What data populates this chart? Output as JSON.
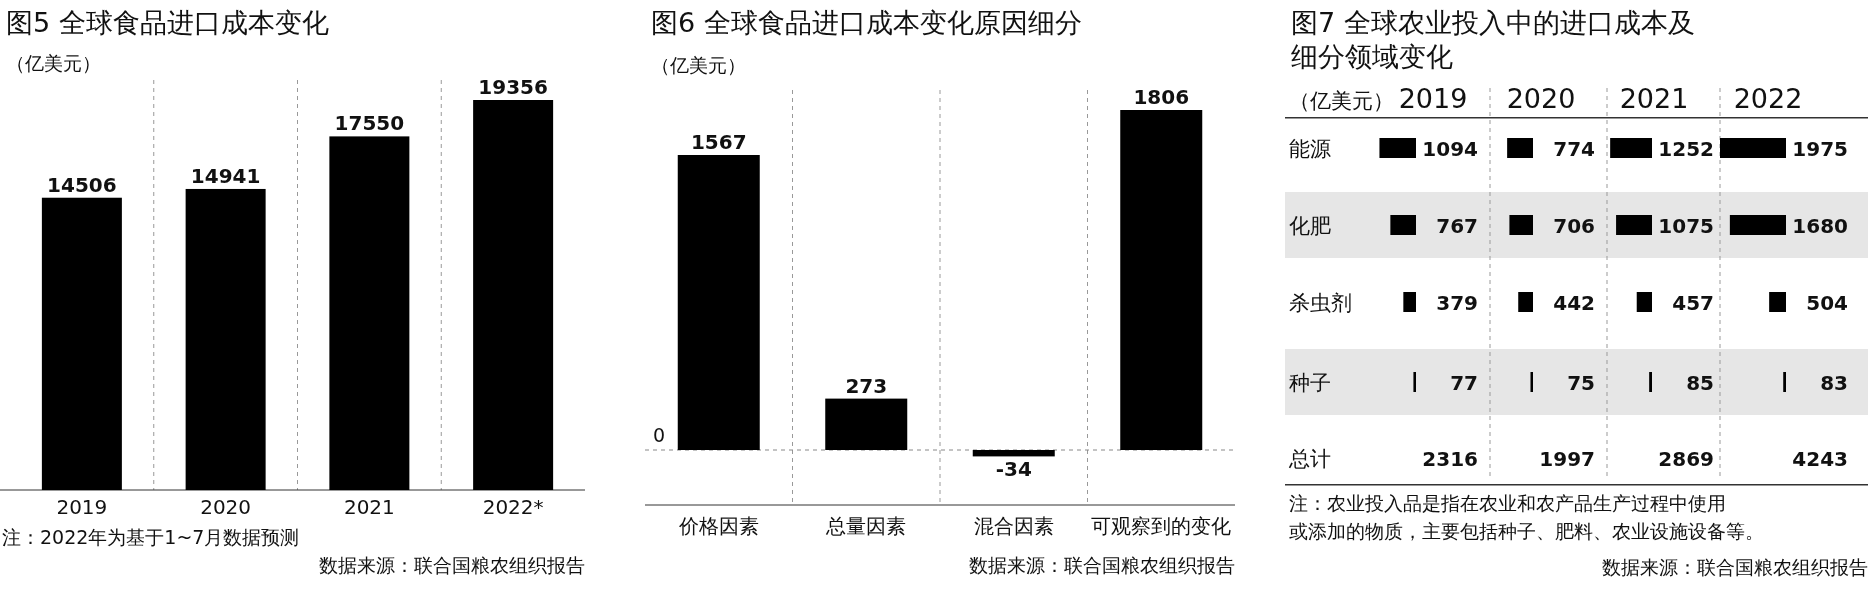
{
  "chart_data": [
    {
      "type": "bar",
      "title": "图5 全球食品进口成本变化",
      "ylabel": "（亿美元）",
      "categories": [
        "2019",
        "2020",
        "2021",
        "2022*"
      ],
      "values": [
        14506,
        14941,
        17550,
        19356
      ],
      "color": "#000000",
      "data_labels": true,
      "grid": "x",
      "annotations": [
        "注：2022年为基于1~7月数据预测",
        "数据来源：联合国粮农组织报告"
      ]
    },
    {
      "type": "bar",
      "title": "图6 全球食品进口成本变化原因细分",
      "ylabel": "（亿美元）",
      "categories": [
        "价格因素",
        "总量因素",
        "混合因素",
        "可观察到的变化"
      ],
      "values": [
        1567,
        273,
        -34,
        1806
      ],
      "color": "#000000",
      "data_labels": true,
      "grid": "x",
      "ref_lines": [
        {
          "axis": "y",
          "value": 0,
          "label": "0",
          "line_style": "dashed"
        }
      ],
      "annotations": [
        "数据来源：联合国粮农组织报告"
      ]
    },
    {
      "type": "bar",
      "orientation": "horizontal",
      "title": "图7  全球农业投入中的进口成本及细分领域变化",
      "ylabel": "（亿美元）",
      "categories": [
        "能源",
        "化肥",
        "杀虫剂",
        "种子"
      ],
      "tick_labels": "y",
      "data_labels": true,
      "series": [
        {
          "name": "2019",
          "color": "#000000",
          "values": [
            1094,
            767,
            379,
            77
          ]
        }
      ],
      "annotations": [
        "总计",
        "2316",
        "注：农业投入品是指在农业和农产品生产过程中使用",
        "或添加的物质，主要包括种子、肥料、农业设施设备等。",
        "数据来源：联合国粮农组织报告"
      ]
    },
    {
      "type": "bar",
      "orientation": "horizontal",
      "categories": [
        null,
        null,
        null,
        null
      ],
      "tick_labels": false,
      "data_labels": true,
      "series": [
        {
          "name": "2020",
          "color": "#000000",
          "values": [
            774,
            706,
            442,
            75
          ]
        }
      ],
      "annotations": [
        "1997"
      ]
    },
    {
      "type": "bar",
      "orientation": "horizontal",
      "categories": [
        null,
        null,
        null,
        null
      ],
      "tick_labels": false,
      "data_labels": true,
      "series": [
        {
          "name": "2021",
          "color": "#000000",
          "values": [
            1252,
            1075,
            457,
            85
          ]
        }
      ],
      "annotations": [
        "2869"
      ]
    },
    {
      "type": "bar",
      "orientation": "horizontal",
      "categories": [
        null,
        null,
        null,
        null
      ],
      "tick_labels": false,
      "data_labels": true,
      "series": [
        {
          "name": "2022",
          "color": "#000000",
          "values": [
            1975,
            1680,
            504,
            83
          ]
        }
      ],
      "annotations": [
        "4243"
      ]
    }
  ]
}
